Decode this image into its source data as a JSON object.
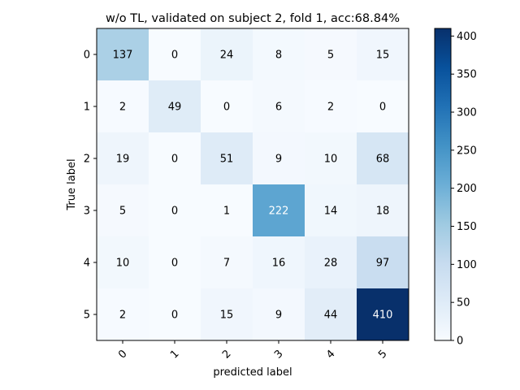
{
  "chart_data": {
    "type": "heatmap",
    "title": "w/o TL, validated on subject 2, fold 1, acc:68.84%",
    "xlabel": "predicted label",
    "ylabel": "True label",
    "x_tick_labels": [
      "0",
      "1",
      "2",
      "3",
      "4",
      "5"
    ],
    "y_tick_labels": [
      "0",
      "1",
      "2",
      "3",
      "4",
      "5"
    ],
    "matrix": [
      [
        137,
        0,
        24,
        8,
        5,
        15
      ],
      [
        2,
        49,
        0,
        6,
        2,
        0
      ],
      [
        19,
        0,
        51,
        9,
        10,
        68
      ],
      [
        5,
        0,
        1,
        222,
        14,
        18
      ],
      [
        10,
        0,
        7,
        16,
        28,
        97
      ],
      [
        2,
        0,
        15,
        9,
        44,
        410
      ]
    ],
    "colormap": "Blues",
    "colorbar": {
      "min": 0,
      "max": 410,
      "ticks": [
        0,
        50,
        100,
        150,
        200,
        250,
        300,
        350,
        400
      ]
    },
    "grid": false
  }
}
